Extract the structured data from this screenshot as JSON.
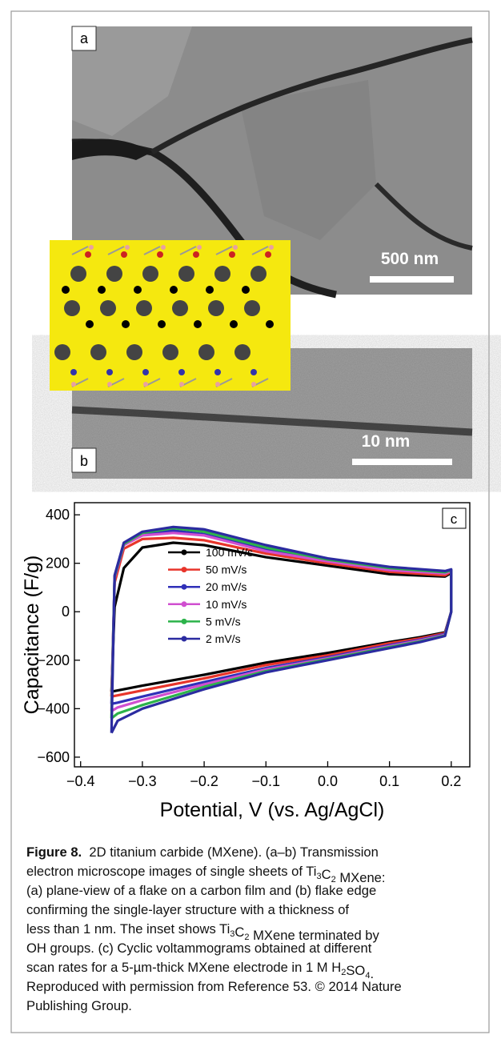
{
  "panels": {
    "a": {
      "label": "a",
      "scale_bar": "500 nm"
    },
    "b": {
      "label": "b",
      "scale_bar": "10 nm"
    }
  },
  "chart_data": {
    "type": "line",
    "panel_label": "c",
    "x_label": "Potential, V (vs. Ag/AgCl)",
    "y_label": "Capacitance (F/g)",
    "xlim": [
      -0.41,
      0.23
    ],
    "ylim": [
      -640,
      450
    ],
    "xticks": [
      {
        "value": -0.4,
        "label": "−0.4"
      },
      {
        "value": -0.3,
        "label": "−0.3"
      },
      {
        "value": -0.2,
        "label": "−0.2"
      },
      {
        "value": -0.1,
        "label": "−0.1"
      },
      {
        "value": 0,
        "label": "0.0"
      },
      0.1,
      0.2
    ],
    "yticks": [
      {
        "value": -600,
        "label": "−600"
      },
      {
        "value": -400,
        "label": "−400"
      },
      {
        "value": -200,
        "label": "−200"
      },
      0,
      200,
      400
    ],
    "series": [
      {
        "name": "100 mV/s",
        "color": "#000000",
        "x": [
          -0.35,
          -0.345,
          -0.33,
          -0.3,
          -0.25,
          -0.2,
          -0.1,
          0,
          0.1,
          0.19,
          0.2,
          0.2,
          0.19,
          0.15,
          0.1,
          0,
          -0.1,
          -0.2,
          -0.3,
          -0.34,
          -0.35
        ],
        "values": [
          -330,
          20,
          180,
          265,
          285,
          275,
          225,
          190,
          155,
          145,
          160,
          0,
          -85,
          -105,
          -125,
          -170,
          -210,
          -260,
          -305,
          -325,
          -330
        ]
      },
      {
        "name": "50 mV/s",
        "color": "#e8352b",
        "x": [
          -0.35,
          -0.345,
          -0.33,
          -0.3,
          -0.25,
          -0.2,
          -0.1,
          0,
          0.1,
          0.19,
          0.2,
          0.2,
          0.19,
          0.15,
          0.1,
          0,
          -0.1,
          -0.2,
          -0.3,
          -0.34,
          -0.35
        ],
        "values": [
          -350,
          120,
          260,
          300,
          305,
          295,
          240,
          200,
          165,
          150,
          165,
          0,
          -88,
          -110,
          -130,
          -180,
          -220,
          -275,
          -325,
          -345,
          -350
        ]
      },
      {
        "name": "20 mV/s",
        "color": "#3030b8",
        "x": [
          -0.35,
          -0.345,
          -0.33,
          -0.3,
          -0.25,
          -0.2,
          -0.1,
          0,
          0.1,
          0.19,
          0.2,
          0.2,
          0.19,
          0.15,
          0.1,
          0,
          -0.1,
          -0.2,
          -0.3,
          -0.34,
          -0.35
        ],
        "values": [
          -380,
          140,
          275,
          320,
          335,
          320,
          255,
          210,
          175,
          160,
          170,
          0,
          -92,
          -115,
          -138,
          -188,
          -232,
          -290,
          -350,
          -375,
          -380
        ]
      },
      {
        "name": "10 mV/s",
        "color": "#d04fd0",
        "x": [
          -0.35,
          -0.345,
          -0.33,
          -0.3,
          -0.25,
          -0.2,
          -0.1,
          0,
          0.1,
          0.19,
          0.2,
          0.2,
          0.19,
          0.15,
          0.1,
          0,
          -0.1,
          -0.2,
          -0.3,
          -0.34,
          -0.35
        ],
        "values": [
          -410,
          140,
          275,
          315,
          325,
          315,
          250,
          208,
          172,
          158,
          168,
          0,
          -95,
          -118,
          -142,
          -192,
          -238,
          -300,
          -365,
          -395,
          -410
        ]
      },
      {
        "name": "5 mV/s",
        "color": "#2cb34a",
        "x": [
          -0.35,
          -0.345,
          -0.33,
          -0.3,
          -0.25,
          -0.2,
          -0.1,
          0,
          0.1,
          0.19,
          0.2,
          0.2,
          0.19,
          0.15,
          0.1,
          0,
          -0.1,
          -0.2,
          -0.3,
          -0.34,
          -0.35
        ],
        "values": [
          -440,
          145,
          280,
          325,
          345,
          330,
          265,
          215,
          180,
          163,
          172,
          0,
          -98,
          -122,
          -146,
          -196,
          -245,
          -310,
          -385,
          -420,
          -440
        ]
      },
      {
        "name": "2 mV/s",
        "color": "#2b2ba0",
        "x": [
          -0.35,
          -0.345,
          -0.33,
          -0.3,
          -0.25,
          -0.2,
          -0.1,
          0,
          0.1,
          0.19,
          0.2,
          0.2,
          0.19,
          0.15,
          0.1,
          0,
          -0.1,
          -0.2,
          -0.3,
          -0.34,
          -0.35
        ],
        "values": [
          -500,
          150,
          285,
          330,
          350,
          340,
          275,
          220,
          185,
          168,
          175,
          0,
          -100,
          -125,
          -150,
          -200,
          -250,
          -320,
          -400,
          -450,
          -500
        ]
      }
    ]
  },
  "caption": {
    "lines": [
      [
        {
          "text": "Figure 8.",
          "bold": true
        },
        {
          "text": "  2D titanium carbide (MXene). (a–b) Transmission"
        }
      ],
      [
        {
          "text": "electron microscope images of single sheets of Ti"
        },
        {
          "text": "3",
          "sub": true
        },
        {
          "text": "C"
        },
        {
          "text": "2",
          "sub": true
        },
        {
          "text": " MXene:"
        }
      ],
      [
        {
          "text": "(a) plane-view of a flake on a carbon film and (b) flake edge"
        }
      ],
      [
        {
          "text": "confirming the single-layer structure with a thickness of"
        }
      ],
      [
        {
          "text": "less than 1 nm. The inset shows Ti"
        },
        {
          "text": "3",
          "sub": true
        },
        {
          "text": "C"
        },
        {
          "text": "2",
          "sub": true
        },
        {
          "text": " MXene terminated by"
        }
      ],
      [
        {
          "text": "OH groups. (c) Cyclic voltammograms obtained at different"
        }
      ],
      [
        {
          "text": "scan rates for a 5-µm-thick MXene electrode in 1 M H"
        },
        {
          "text": "2",
          "sub": true
        },
        {
          "text": "SO"
        },
        {
          "text": "4",
          "sub": true
        },
        {
          "text": "."
        }
      ],
      [
        {
          "text": "Reproduced with permission from Reference 53. © 2014 Nature"
        }
      ],
      [
        {
          "text": "Publishing Group."
        }
      ]
    ]
  }
}
